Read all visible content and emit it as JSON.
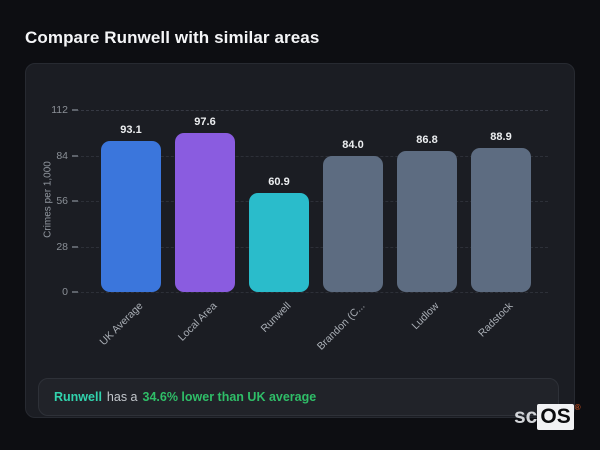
{
  "page": {
    "title": "Compare Runwell with similar areas"
  },
  "chart_data": {
    "type": "bar",
    "categories": [
      "UK Average",
      "Local Area",
      "Runwell",
      "Brandon (C...",
      "Ludlow",
      "Radstock"
    ],
    "values": [
      93.1,
      97.6,
      60.9,
      84.0,
      86.8,
      88.9
    ],
    "value_labels": [
      "93.1",
      "97.6",
      "60.9",
      "84.0",
      "86.8",
      "88.9"
    ],
    "bar_colors": [
      "#3b76dc",
      "#8a5ce0",
      "#2abccb",
      "#5d6c81",
      "#5d6c81",
      "#5d6c81"
    ],
    "title": "",
    "xlabel": "",
    "ylabel": "Crimes per 1,000",
    "yticks": [
      0,
      28,
      56,
      84,
      112
    ],
    "ylim": [
      0,
      112
    ],
    "grid": "dashed-horizontal",
    "legend": "none",
    "xtick_rotation_deg": -45
  },
  "note": {
    "subject": "Runwell",
    "text_middle": "has a",
    "highlight": "34.6% lower than UK average",
    "subject_color": "#31d3ad",
    "highlight_color": "#2fbe68"
  },
  "logo": {
    "prefix": "sc",
    "box": "OS",
    "registered": "®"
  },
  "colors": {
    "page_background": "#0d0e12",
    "card_background": "#1b1d23",
    "accent_blue": "#3b76dc",
    "accent_purple": "#8a5ce0",
    "accent_teal": "#2abccb",
    "neutral_bar": "#5d6c81"
  }
}
